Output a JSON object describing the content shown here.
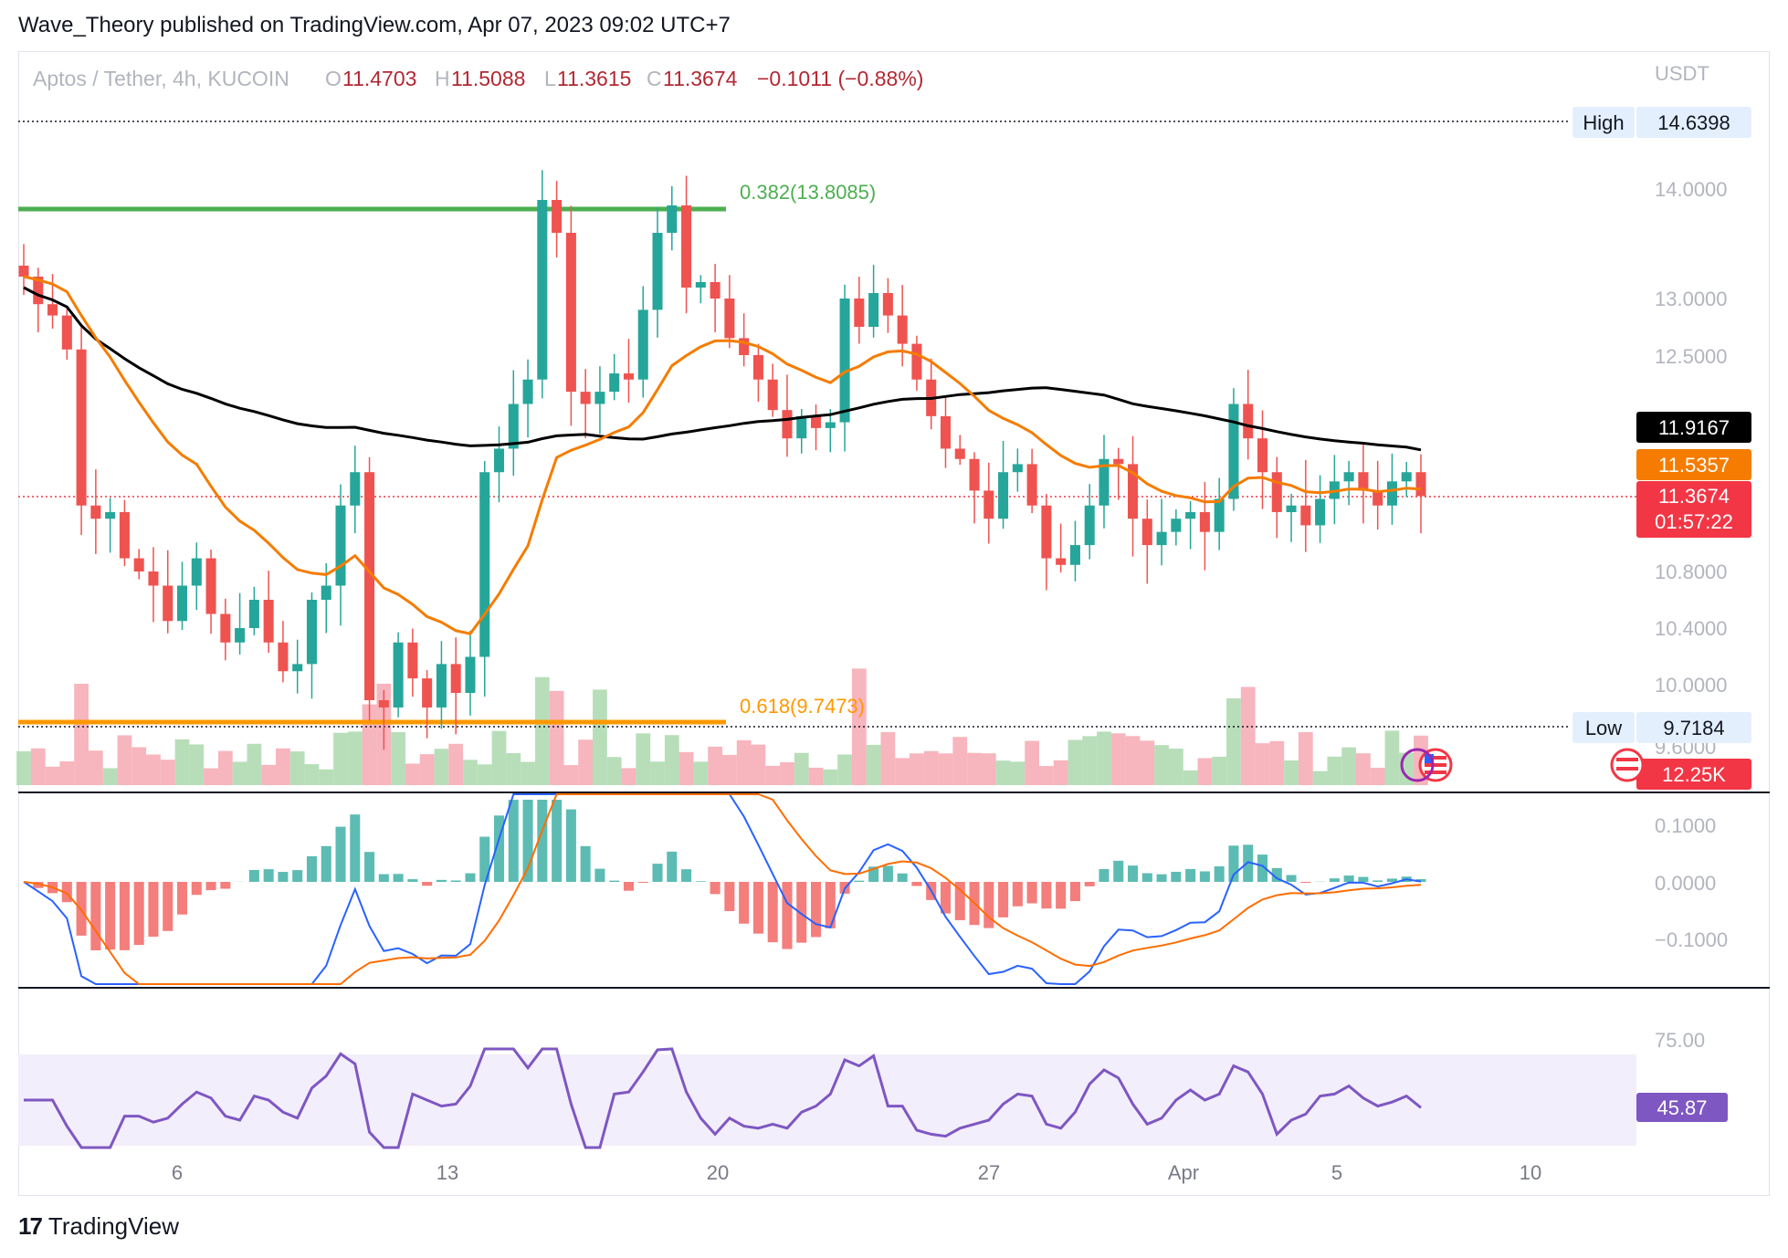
{
  "header": {
    "attribution": "Wave_Theory published on TradingView.com, Apr 07, 2023 09:02 UTC+7"
  },
  "footer": {
    "brand": "TradingView",
    "logo_text": "17"
  },
  "colors": {
    "up": "#26a69a",
    "down": "#ef5350",
    "ema50": "#f57c00",
    "ma200": "#000000",
    "fib382": "#4caf50",
    "fib618": "#ff9800",
    "macd": "#2962ff",
    "signal": "#ff6d00",
    "rsi": "#7e57c2",
    "rsi_band": "#f3eefb"
  },
  "legend": {
    "symbol": "Aptos / Tether, 4h, KUCOIN",
    "o_label": "O",
    "o": "11.4703",
    "h_label": "H",
    "h": "11.5088",
    "l_label": "L",
    "l": "11.3615",
    "c_label": "C",
    "c": "11.3674",
    "change": "−0.1011 (−0.88%)"
  },
  "price_axis": {
    "currency": "USDT",
    "ticks": [
      "14.0000",
      "13.0000",
      "12.5000",
      "10.8000",
      "10.4000",
      "10.0000",
      "9.6000"
    ],
    "high_label": "High",
    "high_value": "14.6398",
    "low_label": "Low",
    "low_value": "9.7184",
    "ma200_value": "11.9167",
    "ema50_value": "11.5357",
    "last_price": "11.3674",
    "countdown": "01:57:22",
    "volume_value": "12.25K"
  },
  "fib": {
    "level_382": "0.382(13.8085)",
    "level_618": "0.618(9.7473)"
  },
  "macd_axis": {
    "ticks": [
      "0.1000",
      "0.0000",
      "−0.1000"
    ]
  },
  "rsi_axis": {
    "ticks": [
      "75.00"
    ],
    "value": "45.87"
  },
  "time_axis": {
    "labels": [
      "6",
      "13",
      "20",
      "27",
      "Apr",
      "5",
      "10"
    ]
  },
  "chart_data": {
    "type": "candlestick",
    "title": "Aptos / Tether, 4h, KUCOIN",
    "x_labels": [
      "6",
      "13",
      "20",
      "27",
      "Apr",
      "5",
      "10"
    ],
    "price_range": [
      9.45,
      14.9
    ],
    "horizontal_levels": [
      {
        "name": "0.382",
        "value": 13.8085
      },
      {
        "name": "0.618",
        "value": 9.7473
      },
      {
        "name": "High",
        "value": 14.6398
      },
      {
        "name": "Low",
        "value": 9.7184
      }
    ],
    "last": {
      "open": 11.4703,
      "high": 11.5088,
      "low": 11.3615,
      "close": 11.3674
    },
    "ma200_last": 11.9167,
    "ema50_last": 11.5357,
    "volume_last": "12.25K",
    "close_path": [
      13.2,
      12.95,
      12.85,
      12.55,
      11.3,
      11.2,
      11.25,
      10.9,
      10.8,
      10.7,
      10.45,
      10.7,
      10.9,
      10.5,
      10.3,
      10.4,
      10.6,
      10.3,
      10.1,
      10.15,
      10.6,
      10.7,
      11.3,
      11.5,
      9.9,
      9.85,
      10.3,
      10.05,
      9.85,
      10.15,
      9.95,
      10.2,
      11.5,
      11.7,
      12.1,
      12.3,
      13.9,
      13.6,
      12.2,
      12.1,
      12.2,
      12.35,
      12.3,
      12.9,
      13.6,
      13.85,
      13.1,
      13.15,
      13.0,
      12.65,
      12.5,
      12.3,
      12.05,
      11.8,
      12.0,
      11.9,
      11.95,
      13.0,
      12.75,
      13.05,
      12.85,
      12.6,
      12.3,
      12.0,
      11.7,
      11.6,
      11.4,
      11.2,
      11.5,
      11.55,
      11.3,
      10.9,
      10.85,
      11.0,
      11.3,
      11.6,
      11.55,
      11.2,
      11.0,
      11.1,
      11.2,
      11.25,
      11.1,
      11.35,
      12.1,
      11.8,
      11.5,
      11.25,
      11.3,
      11.15,
      11.35,
      11.45,
      11.5,
      11.4,
      11.3,
      11.45,
      11.5,
      11.37
    ],
    "rsi_last": 45.87
  }
}
